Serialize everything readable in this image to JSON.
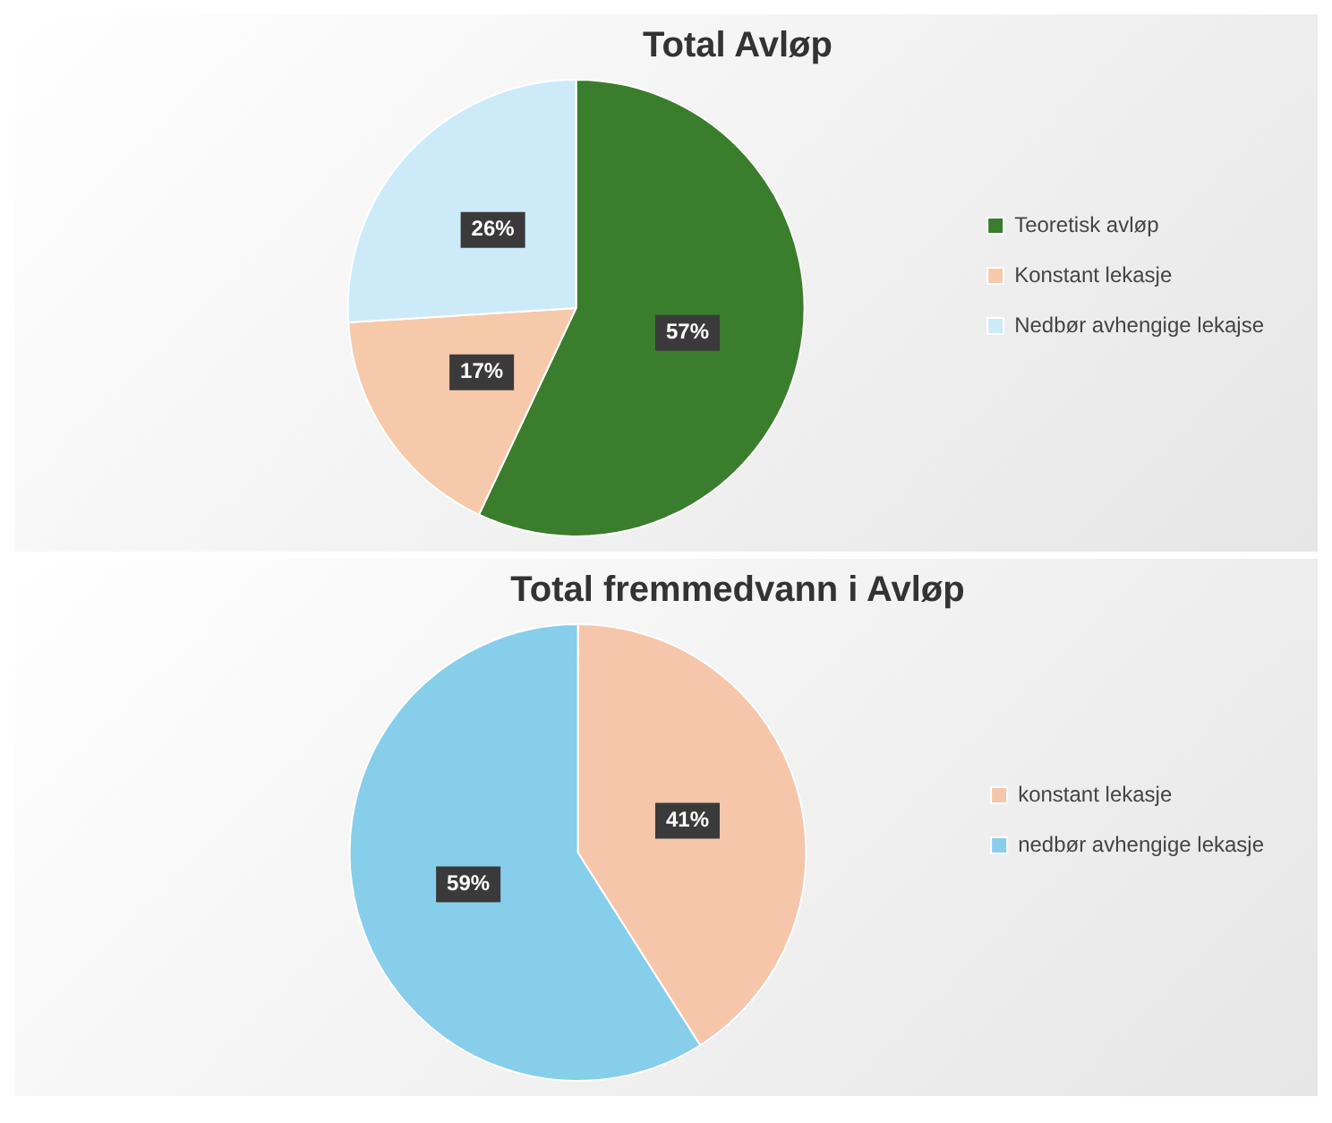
{
  "chart_data": [
    {
      "type": "pie",
      "title": "Total Avløp",
      "categories": [
        "Teoretisk avløp",
        "Konstant lekasje",
        "Nedbør avhengige lekajse"
      ],
      "values": [
        57,
        17,
        26
      ],
      "colors": [
        "#3a7d2c",
        "#f6c9ab",
        "#cdeaf8"
      ],
      "value_labels": [
        "57%",
        "17%",
        "26%"
      ],
      "legend": "right"
    },
    {
      "type": "pie",
      "title": "Total fremmedvann i Avløp",
      "categories": [
        "konstant lekasje",
        "nedbør avhengige lekasje"
      ],
      "values": [
        41,
        59
      ],
      "colors": [
        "#f6c6ab",
        "#87ceeb"
      ],
      "value_labels": [
        "41%",
        "59%"
      ],
      "legend": "right"
    }
  ]
}
